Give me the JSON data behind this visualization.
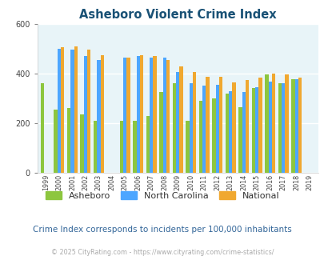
{
  "title": "Asheboro Violent Crime Index",
  "years": [
    1999,
    2000,
    2001,
    2002,
    2003,
    2004,
    2005,
    2006,
    2007,
    2008,
    2009,
    2010,
    2011,
    2012,
    2013,
    2014,
    2015,
    2016,
    2017,
    2018,
    2019
  ],
  "asheboro": [
    360,
    255,
    260,
    235,
    210,
    null,
    210,
    210,
    230,
    325,
    360,
    210,
    290,
    300,
    320,
    265,
    340,
    395,
    360,
    378,
    null
  ],
  "north_carolina": [
    null,
    500,
    495,
    470,
    455,
    null,
    465,
    470,
    465,
    465,
    405,
    360,
    350,
    355,
    330,
    325,
    345,
    368,
    360,
    378,
    null
  ],
  "national": [
    null,
    505,
    508,
    495,
    475,
    null,
    465,
    475,
    470,
    455,
    430,
    405,
    388,
    388,
    365,
    375,
    383,
    400,
    395,
    382,
    null
  ],
  "asheboro_color": "#8dc63f",
  "nc_color": "#4da6ff",
  "national_color": "#f0a830",
  "bg_color": "#e8f4f8",
  "title_color": "#1a5276",
  "ylabel_max": 600,
  "subtitle": "Crime Index corresponds to incidents per 100,000 inhabitants",
  "footer": "© 2025 CityRating.com - https://www.cityrating.com/crime-statistics/",
  "subtitle_color": "#336699",
  "footer_color": "#aaaaaa"
}
